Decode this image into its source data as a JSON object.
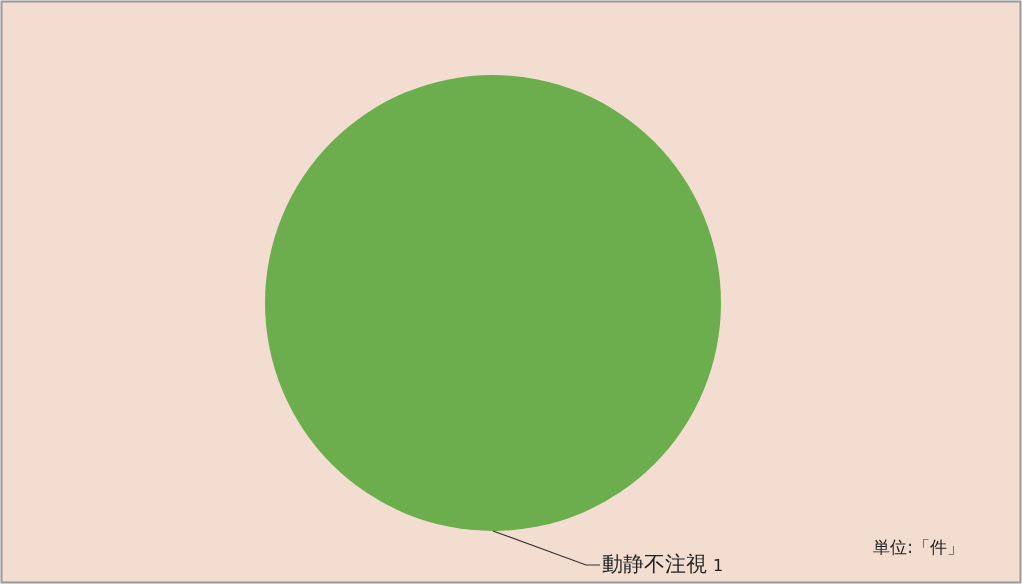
{
  "chart_data": {
    "type": "pie",
    "categories": [
      "動静不注視"
    ],
    "values": [
      1
    ],
    "colors": [
      "#6cae4e"
    ],
    "data_labels": true,
    "annotations": [
      "単位:「件」"
    ]
  }
}
